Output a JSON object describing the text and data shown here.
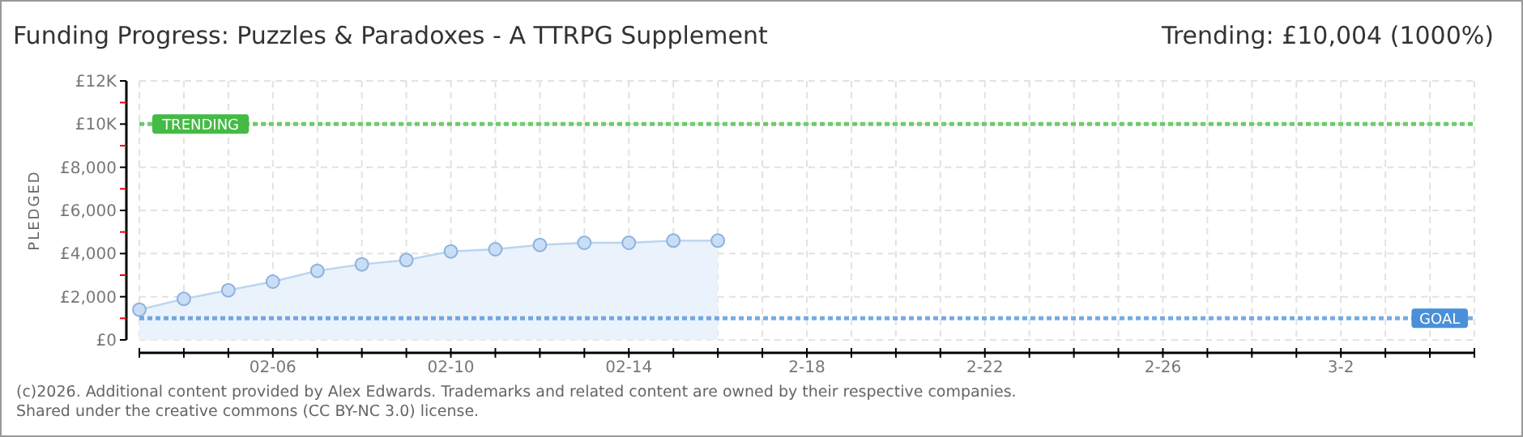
{
  "chart_data": {
    "type": "area",
    "title": "Funding Progress: Puzzles & Paradoxes - A TTRPG Supplement",
    "subtitle": "Trending: £10,004 (1000%)",
    "ylabel": "PLEDGED",
    "annotations": [
      "(c)2026. Additional content provided by Alex Edwards. Trademarks and related content are owned by their respective companies.",
      "Shared under the creative commons (CC BY-NC 3.0) license."
    ],
    "series": [
      {
        "type": "area",
        "color": "#b8d4f0",
        "x": [
          "2026-02-03",
          "2026-02-04",
          "2026-02-05",
          "2026-02-06",
          "2026-02-07",
          "2026-02-08",
          "2026-02-09",
          "2026-02-10",
          "2026-02-11",
          "2026-02-12",
          "2026-02-13",
          "2026-02-14",
          "2026-02-15",
          "2026-02-16"
        ],
        "values": [
          1400,
          1900,
          2300,
          2700,
          3200,
          3500,
          3700,
          4100,
          4200,
          4400,
          4500,
          4500,
          4600,
          4600
        ]
      }
    ],
    "xlim": [
      "2026-02-03",
      "2026-03-05"
    ],
    "xticks": [
      {
        "value": "2026-02-03",
        "label": null
      },
      {
        "value": "2026-02-04",
        "label": null
      },
      {
        "value": "2026-02-05",
        "label": null
      },
      {
        "value": "2026-02-06",
        "label": "02-06"
      },
      {
        "value": "2026-02-07",
        "label": null
      },
      {
        "value": "2026-02-08",
        "label": null
      },
      {
        "value": "2026-02-09",
        "label": null
      },
      {
        "value": "2026-02-10",
        "label": "02-10"
      },
      {
        "value": "2026-02-11",
        "label": null
      },
      {
        "value": "2026-02-12",
        "label": null
      },
      {
        "value": "2026-02-13",
        "label": null
      },
      {
        "value": "2026-02-14",
        "label": "02-14"
      },
      {
        "value": "2026-02-15",
        "label": null
      },
      {
        "value": "2026-02-16",
        "label": null
      },
      {
        "value": "2026-02-17",
        "label": null
      },
      {
        "value": "2026-02-18",
        "label": "2-18"
      },
      {
        "value": "2026-02-19",
        "label": null
      },
      {
        "value": "2026-02-20",
        "label": null
      },
      {
        "value": "2026-02-21",
        "label": null
      },
      {
        "value": "2026-02-22",
        "label": "2-22"
      },
      {
        "value": "2026-02-23",
        "label": null
      },
      {
        "value": "2026-02-24",
        "label": null
      },
      {
        "value": "2026-02-25",
        "label": null
      },
      {
        "value": "2026-02-26",
        "label": "2-26"
      },
      {
        "value": "2026-02-27",
        "label": null
      },
      {
        "value": "2026-02-28",
        "label": null
      },
      {
        "value": "2026-03-01",
        "label": null
      },
      {
        "value": "2026-03-02",
        "label": "3-2"
      },
      {
        "value": "2026-03-03",
        "label": null
      },
      {
        "value": "2026-03-04",
        "label": null
      },
      {
        "value": "2026-03-05",
        "label": null
      }
    ],
    "ylim": [
      0,
      12000
    ],
    "yticks": [
      {
        "value": 0,
        "label": "£0"
      },
      {
        "value": 1000,
        "label": null
      },
      {
        "value": 2000,
        "label": "£2,000"
      },
      {
        "value": 3000,
        "label": null
      },
      {
        "value": 4000,
        "label": "£4,000"
      },
      {
        "value": 5000,
        "label": null
      },
      {
        "value": 6000,
        "label": "£6,000"
      },
      {
        "value": 7000,
        "label": null
      },
      {
        "value": 8000,
        "label": "£8,000"
      },
      {
        "value": 9000,
        "label": null
      },
      {
        "value": 10000,
        "label": "£10K"
      },
      {
        "value": 11000,
        "label": null
      },
      {
        "value": 12000,
        "label": "£12K"
      }
    ],
    "ref_lines": [
      {
        "axis": "y",
        "value": 10004,
        "label": "TRENDING",
        "color": "#44bb44",
        "line_style": "dotted"
      },
      {
        "axis": "y",
        "value": 1000,
        "label": "GOAL",
        "color": "#4a8fd8",
        "line_style": "dotted"
      }
    ],
    "grid": true,
    "marker": "circle",
    "line_style": "solid"
  }
}
